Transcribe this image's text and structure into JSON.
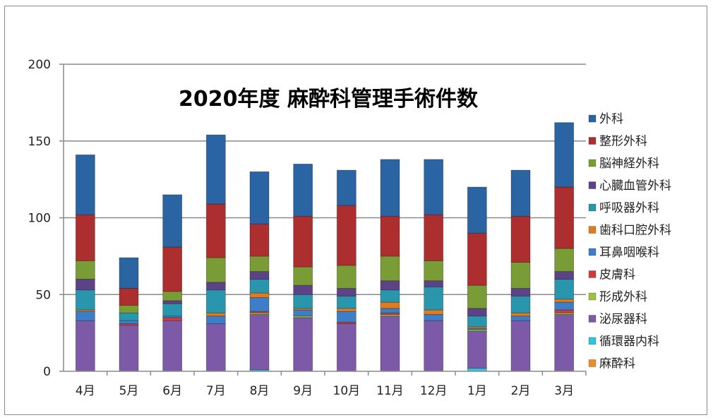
{
  "chart_data": {
    "type": "bar",
    "stacked": true,
    "title": "2020年度 麻酔科管理手術件数",
    "xlabel": "",
    "ylabel": "",
    "ylim": [
      0,
      200
    ],
    "yticks": [
      0,
      50,
      100,
      150,
      200
    ],
    "grid": true,
    "legend_position": "right",
    "categories": [
      "4月",
      "5月",
      "6月",
      "7月",
      "8月",
      "9月",
      "10月",
      "11月",
      "12月",
      "1月",
      "2月",
      "3月"
    ],
    "series": [
      {
        "name": "麻酔科",
        "color": "#f08a28",
        "values": [
          0,
          0,
          0,
          0,
          0,
          0,
          0,
          0,
          0,
          0,
          0,
          0
        ]
      },
      {
        "name": "循環器内科",
        "color": "#33c3da",
        "values": [
          0,
          0,
          0,
          0,
          1,
          0,
          0,
          0,
          0,
          2,
          0,
          0
        ]
      },
      {
        "name": "泌尿器科",
        "color": "#7c5aa8",
        "values": [
          33,
          30,
          33,
          31,
          36,
          35,
          31,
          36,
          33,
          24,
          33,
          37
        ]
      },
      {
        "name": "形成外科",
        "color": "#9cc040",
        "values": [
          0,
          0,
          0,
          0,
          1,
          1,
          0,
          1,
          0,
          1,
          0,
          1
        ]
      },
      {
        "name": "皮膚科",
        "color": "#d03c3c",
        "values": [
          0,
          1,
          2,
          0,
          1,
          0,
          1,
          1,
          0,
          0,
          0,
          2
        ]
      },
      {
        "name": "耳鼻咽喉科",
        "color": "#3c7ec8",
        "values": [
          6,
          2,
          1,
          5,
          9,
          4,
          7,
          3,
          4,
          1,
          3,
          5
        ]
      },
      {
        "name": "歯科口腔外科",
        "color": "#e07c20",
        "values": [
          1,
          0,
          0,
          2,
          3,
          1,
          2,
          4,
          3,
          1,
          2,
          2
        ]
      },
      {
        "name": "呼吸器外科",
        "color": "#2996ad",
        "values": [
          13,
          5,
          8,
          15,
          9,
          9,
          8,
          8,
          15,
          7,
          11,
          13
        ]
      },
      {
        "name": "心臓血管外科",
        "color": "#5e4288",
        "values": [
          7,
          0,
          2,
          5,
          5,
          6,
          5,
          6,
          4,
          5,
          5,
          5
        ]
      },
      {
        "name": "脳神経外科",
        "color": "#7a9c36",
        "values": [
          12,
          5,
          6,
          16,
          10,
          12,
          15,
          16,
          13,
          15,
          17,
          15
        ]
      },
      {
        "name": "整形外科",
        "color": "#ac2e2e",
        "values": [
          30,
          11,
          29,
          35,
          21,
          33,
          39,
          26,
          30,
          34,
          30,
          40
        ]
      },
      {
        "name": "外科",
        "color": "#2a64a2",
        "values": [
          39,
          20,
          34,
          45,
          34,
          34,
          23,
          37,
          36,
          30,
          30,
          42
        ]
      }
    ]
  }
}
